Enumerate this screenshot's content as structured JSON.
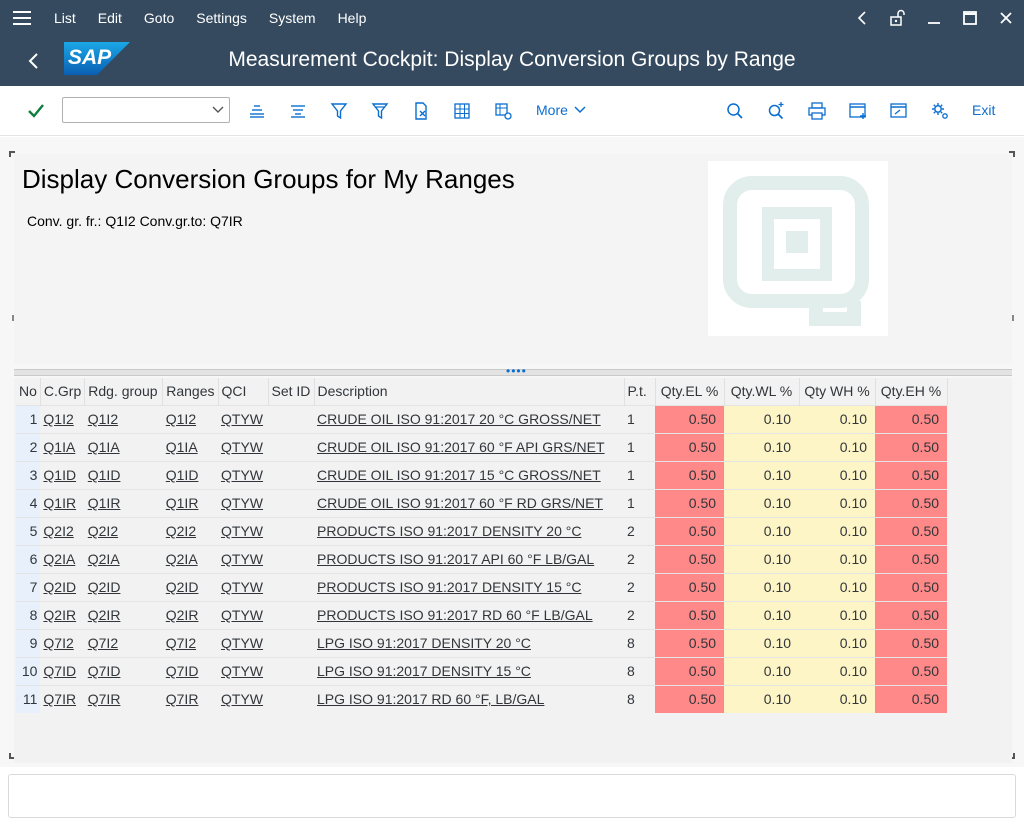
{
  "menu": {
    "items": [
      "List",
      "Edit",
      "Goto",
      "Settings",
      "System",
      "Help"
    ]
  },
  "window": {
    "title": "Measurement Cockpit: Display Conversion Groups by Range",
    "logo_text": "SAP"
  },
  "toolbar": {
    "command_value": "",
    "more_label": "More",
    "exit_label": "Exit"
  },
  "header": {
    "title": "Display Conversion Groups for My Ranges",
    "subtitle": "Conv. gr. fr.: Q1I2 Conv.gr.to: Q7IR"
  },
  "table": {
    "columns": [
      "No",
      "C.Grp",
      "Rdg. group",
      "Ranges",
      "QCI",
      "Set ID",
      "Description",
      "P.t.",
      "Qty.EL %",
      "Qty.WL %",
      "Qty WH %",
      "Qty.EH %"
    ],
    "rows": [
      {
        "no": "1",
        "cgrp": "Q1I2",
        "rdg": "Q1I2",
        "ranges": "Q1I2",
        "qci": "QTYW",
        "setid": "",
        "desc": "CRUDE OIL ISO 91:2017 20 °C GROSS/NET",
        "pt": "1",
        "el": "0.50",
        "wl": "0.10",
        "wh": "0.10",
        "eh": "0.50"
      },
      {
        "no": "2",
        "cgrp": "Q1IA",
        "rdg": "Q1IA",
        "ranges": "Q1IA",
        "qci": "QTYW",
        "setid": "",
        "desc": "CRUDE OIL ISO 91:2017 60 °F API GRS/NET",
        "pt": "1",
        "el": "0.50",
        "wl": "0.10",
        "wh": "0.10",
        "eh": "0.50"
      },
      {
        "no": "3",
        "cgrp": "Q1ID",
        "rdg": "Q1ID",
        "ranges": "Q1ID",
        "qci": "QTYW",
        "setid": "",
        "desc": "CRUDE OIL ISO 91:2017 15 °C GROSS/NET",
        "pt": "1",
        "el": "0.50",
        "wl": "0.10",
        "wh": "0.10",
        "eh": "0.50"
      },
      {
        "no": "4",
        "cgrp": "Q1IR",
        "rdg": "Q1IR",
        "ranges": "Q1IR",
        "qci": "QTYW",
        "setid": "",
        "desc": "CRUDE OIL ISO 91:2017 60 °F RD GRS/NET",
        "pt": "1",
        "el": "0.50",
        "wl": "0.10",
        "wh": "0.10",
        "eh": "0.50"
      },
      {
        "no": "5",
        "cgrp": "Q2I2",
        "rdg": "Q2I2",
        "ranges": "Q2I2",
        "qci": "QTYW",
        "setid": "",
        "desc": "PRODUCTS ISO 91:2017 DENSITY 20 °C",
        "pt": "2",
        "el": "0.50",
        "wl": "0.10",
        "wh": "0.10",
        "eh": "0.50"
      },
      {
        "no": "6",
        "cgrp": "Q2IA",
        "rdg": "Q2IA",
        "ranges": "Q2IA",
        "qci": "QTYW",
        "setid": "",
        "desc": "PRODUCTS ISO 91:2017 API 60 °F LB/GAL",
        "pt": "2",
        "el": "0.50",
        "wl": "0.10",
        "wh": "0.10",
        "eh": "0.50"
      },
      {
        "no": "7",
        "cgrp": "Q2ID",
        "rdg": "Q2ID",
        "ranges": "Q2ID",
        "qci": "QTYW",
        "setid": "",
        "desc": "PRODUCTS ISO 91:2017 DENSITY 15 °C",
        "pt": "2",
        "el": "0.50",
        "wl": "0.10",
        "wh": "0.10",
        "eh": "0.50"
      },
      {
        "no": "8",
        "cgrp": "Q2IR",
        "rdg": "Q2IR",
        "ranges": "Q2IR",
        "qci": "QTYW",
        "setid": "",
        "desc": "PRODUCTS ISO 91:2017 RD 60 °F LB/GAL",
        "pt": "2",
        "el": "0.50",
        "wl": "0.10",
        "wh": "0.10",
        "eh": "0.50"
      },
      {
        "no": "9",
        "cgrp": "Q7I2",
        "rdg": "Q7I2",
        "ranges": "Q7I2",
        "qci": "QTYW",
        "setid": "",
        "desc": "LPG ISO 91:2017 DENSITY 20 °C",
        "pt": "8",
        "el": "0.50",
        "wl": "0.10",
        "wh": "0.10",
        "eh": "0.50"
      },
      {
        "no": "10",
        "cgrp": "Q7ID",
        "rdg": "Q7ID",
        "ranges": "Q7ID",
        "qci": "QTYW",
        "setid": "",
        "desc": "LPG ISO 91:2017 DENSITY 15 °C",
        "pt": "8",
        "el": "0.50",
        "wl": "0.10",
        "wh": "0.10",
        "eh": "0.50"
      },
      {
        "no": "11",
        "cgrp": "Q7IR",
        "rdg": "Q7IR",
        "ranges": "Q7IR",
        "qci": "QTYW",
        "setid": "",
        "desc": "LPG ISO 91:2017 RD 60 °F, LB/GAL",
        "pt": "8",
        "el": "0.50",
        "wl": "0.10",
        "wh": "0.10",
        "eh": "0.50"
      }
    ]
  },
  "colors": {
    "shell": "#354a5f",
    "accent": "#0a6ed1",
    "exception_high": "#ff8888",
    "warning": "#fef5c6",
    "row_number_bg": "#e8f1fb"
  },
  "statusbar": {
    "text": ""
  }
}
